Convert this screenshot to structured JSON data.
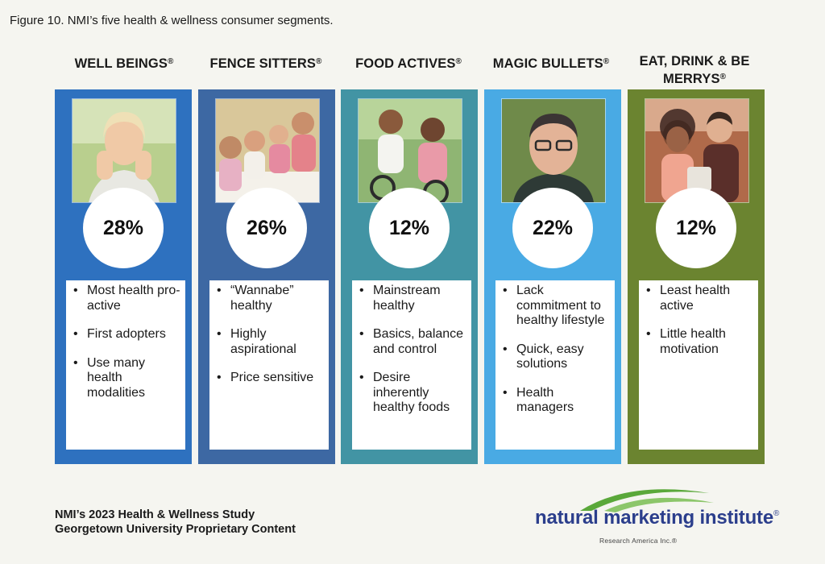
{
  "figure": {
    "title": "Figure 10. NMI’s five health & wellness consumer segments."
  },
  "segments": [
    {
      "name": "WELL BEINGS",
      "mark": "®",
      "percent": "28%",
      "color": "#2e71bf",
      "bullets": [
        "Most health pro-active",
        "First adopters",
        "Use many health modalities"
      ]
    },
    {
      "name": "FENCE SITTERS",
      "mark": "®",
      "percent": "26%",
      "color": "#3d68a3",
      "bullets": [
        "“Wannabe” healthy",
        "Highly aspirational",
        "Price sensitive"
      ]
    },
    {
      "name": "FOOD ACTIVES",
      "mark": "®",
      "percent": "12%",
      "color": "#4294a4",
      "bullets": [
        "Mainstream healthy",
        "Basics, balance and control",
        "Desire inherently healthy foods"
      ]
    },
    {
      "name": "MAGIC BULLETS",
      "mark": "®",
      "percent": "22%",
      "color": "#49aae4",
      "bullets": [
        "Lack commitment to healthy lifestyle",
        "Quick, easy solutions",
        "Health managers"
      ]
    },
    {
      "name": "EAT, DRINK & BE MERRYS",
      "mark": "®",
      "percent": "12%",
      "color": "#6b8430",
      "bullets": [
        "Least health active",
        "Little health motivation"
      ]
    }
  ],
  "footer": {
    "line1": "NMI’s 2023 Health & Wellness Study",
    "line2": "Georgetown University Proprietary Content"
  },
  "logo": {
    "name": "natural marketing institute",
    "mark": "®",
    "tagline": "Research America Inc.®",
    "color": "#2b3e8c",
    "swoosh_color": "#5aa83a"
  }
}
